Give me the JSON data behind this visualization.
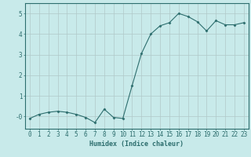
{
  "x": [
    0,
    1,
    2,
    3,
    4,
    5,
    6,
    7,
    8,
    9,
    10,
    11,
    12,
    13,
    14,
    15,
    16,
    17,
    18,
    19,
    20,
    21,
    22,
    23
  ],
  "y": [
    -0.1,
    0.1,
    0.2,
    0.25,
    0.2,
    0.1,
    -0.05,
    -0.3,
    0.35,
    -0.05,
    -0.1,
    1.5,
    3.05,
    4.0,
    4.4,
    4.55,
    5.0,
    4.85,
    4.6,
    4.15,
    4.65,
    4.45,
    4.45,
    4.55
  ],
  "line_color": "#2d6e6e",
  "marker": "D",
  "marker_size": 1.5,
  "background_color": "#c8eaea",
  "grid_color": "#b0c8c8",
  "xlabel": "Humidex (Indice chaleur)",
  "xlabel_fontsize": 6,
  "tick_color": "#2d6e6e",
  "tick_fontsize": 5.5,
  "ylim": [
    -0.6,
    5.5
  ],
  "xlim": [
    -0.5,
    23.5
  ],
  "yticks": [
    0,
    1,
    2,
    3,
    4,
    5
  ],
  "ytick_labels": [
    "-0",
    "1",
    "2",
    "3",
    "4",
    "5"
  ],
  "xticks": [
    0,
    1,
    2,
    3,
    4,
    5,
    6,
    7,
    8,
    9,
    10,
    11,
    12,
    13,
    14,
    15,
    16,
    17,
    18,
    19,
    20,
    21,
    22,
    23
  ]
}
